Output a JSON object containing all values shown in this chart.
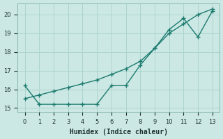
{
  "xlabel": "Humidex (Indice chaleur)",
  "bg_color": "#cce8e4",
  "grid_color": "#add4ce",
  "line_color": "#1a7a6e",
  "xlim": [
    -0.5,
    13.5
  ],
  "ylim": [
    14.8,
    20.6
  ],
  "yticks": [
    15,
    16,
    17,
    18,
    19,
    20
  ],
  "xticks": [
    0,
    1,
    2,
    3,
    4,
    5,
    6,
    7,
    8,
    9,
    10,
    11,
    12,
    13
  ],
  "line_jagged_x": [
    0,
    1,
    2,
    3,
    4,
    5,
    6,
    7,
    8,
    9,
    10,
    11,
    12,
    13
  ],
  "line_jagged_y": [
    16.2,
    15.2,
    15.2,
    15.2,
    15.2,
    15.2,
    16.2,
    16.2,
    17.3,
    18.2,
    19.2,
    19.8,
    18.8,
    20.2
  ],
  "line_smooth_x": [
    0,
    1,
    2,
    3,
    4,
    5,
    6,
    7,
    8,
    9,
    10,
    11,
    12,
    13
  ],
  "line_smooth_y": [
    15.5,
    15.7,
    15.9,
    16.1,
    16.3,
    16.5,
    16.8,
    17.1,
    17.5,
    18.2,
    19.0,
    19.5,
    20.0,
    20.3
  ],
  "marker": "+",
  "markersize": 4,
  "linewidth": 1.0,
  "fontsize_label": 7,
  "fontsize_tick": 6
}
